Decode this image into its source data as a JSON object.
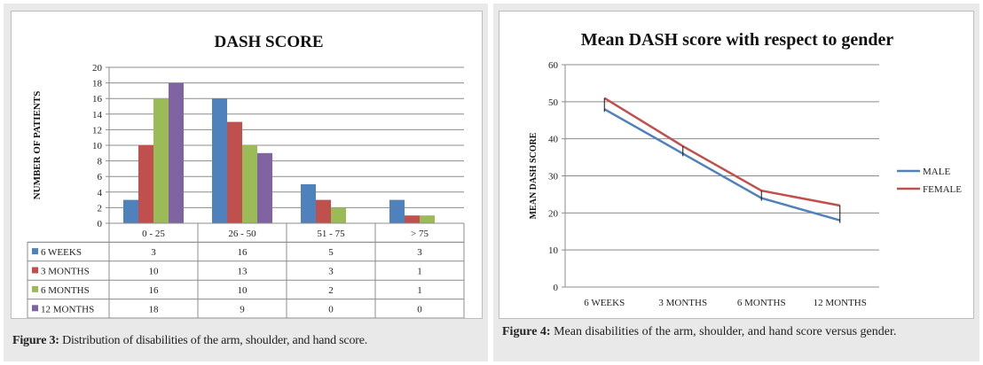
{
  "chart_data": [
    {
      "type": "bar",
      "title": "DASH SCORE",
      "ylabel": "NUMBER OF PATIENTS",
      "xlabel": "",
      "ylim": [
        0,
        20
      ],
      "yticks": [
        "0",
        "2",
        "4",
        "6",
        "8",
        "10",
        "12",
        "14",
        "16",
        "18",
        "20"
      ],
      "categories": [
        "0 - 25",
        "26 - 50",
        "51 - 75",
        "> 75"
      ],
      "series": [
        {
          "name": "6 WEEKS",
          "color": "#4f81bd",
          "values": [
            3,
            16,
            5,
            3
          ]
        },
        {
          "name": "3 MONTHS",
          "color": "#c0504d",
          "values": [
            10,
            13,
            3,
            1
          ]
        },
        {
          "name": "6 MONTHS",
          "color": "#9bbb59",
          "values": [
            16,
            10,
            2,
            1
          ]
        },
        {
          "name": "12 MONTHS",
          "color": "#8064a2",
          "values": [
            18,
            9,
            0,
            0
          ]
        }
      ],
      "grid": true,
      "legend": "data-table"
    },
    {
      "type": "line",
      "title": "Mean DASH score with respect to gender",
      "ylabel": "MEAN DASH SCORE",
      "xlabel": "",
      "ylim": [
        0,
        60
      ],
      "yticks": [
        "0",
        "10",
        "20",
        "30",
        "40",
        "50",
        "60"
      ],
      "categories": [
        "6 WEEKS",
        "3 MONTHS",
        "6 MONTHS",
        "12 MONTHS"
      ],
      "series": [
        {
          "name": "MALE",
          "color": "#4f81bd",
          "values": [
            48,
            36,
            24,
            18
          ]
        },
        {
          "name": "FEMALE",
          "color": "#c0504d",
          "values": [
            51,
            38,
            26,
            22
          ]
        }
      ],
      "grid": true,
      "legend": "right"
    }
  ],
  "captions": {
    "left_label": "Figure 3:",
    "left_text": "Distribution of disabilities of the arm, shoulder, and hand score.",
    "right_label": "Figure 4:",
    "right_text": "Mean disabilities of the arm, shoulder, and hand score versus gender."
  }
}
